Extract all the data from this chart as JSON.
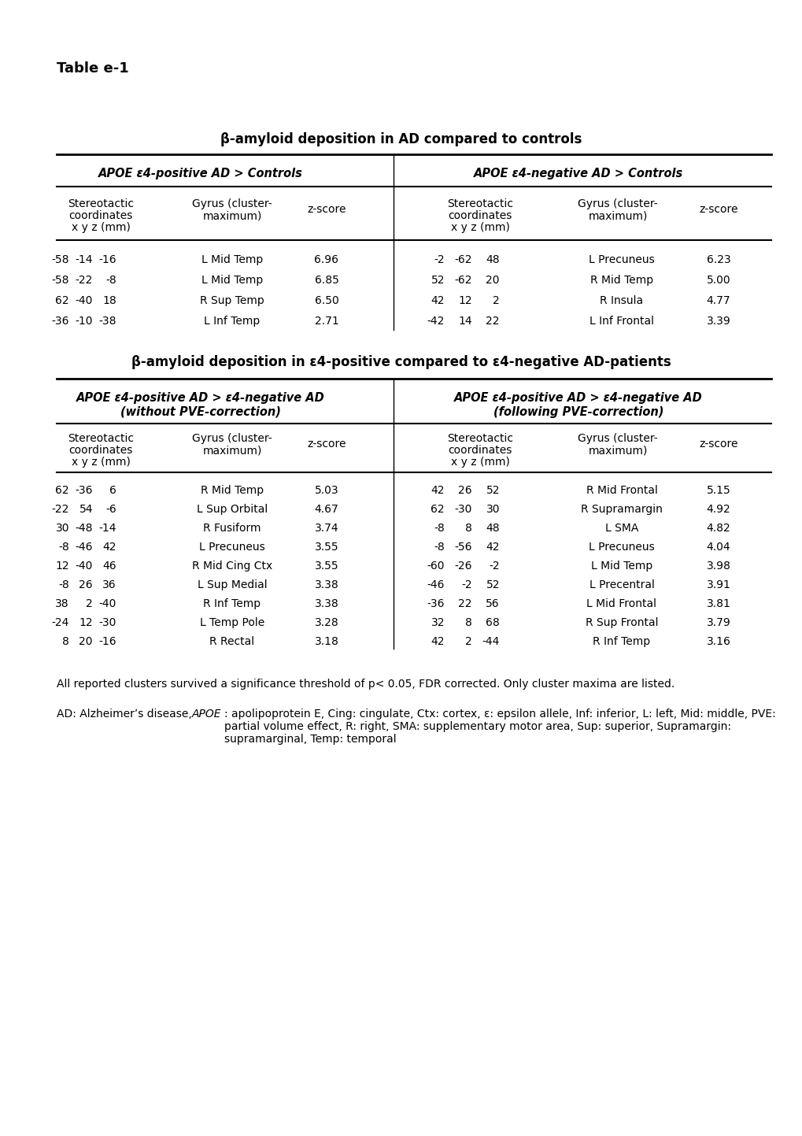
{
  "table_label": "Table e-1",
  "section1_title": "β-amyloid deposition in AD compared to controls",
  "section1_left_header": "APOE ε4-positive AD > Controls",
  "section1_right_header": "APOE ε4-negative AD > Controls",
  "section1_left_data": [
    [
      "-58",
      "-14",
      "-16",
      "L Mid Temp",
      "6.96"
    ],
    [
      "-58",
      "-22",
      "-8",
      "L Mid Temp",
      "6.85"
    ],
    [
      "62",
      "-40",
      "18",
      "R Sup Temp",
      "6.50"
    ],
    [
      "-36",
      "-10",
      "-38",
      "L Inf Temp",
      "2.71"
    ]
  ],
  "section1_right_data": [
    [
      "-2",
      "-62",
      "48",
      "L Precuneus",
      "6.23"
    ],
    [
      "52",
      "-62",
      "20",
      "R Mid Temp",
      "5.00"
    ],
    [
      "42",
      "12",
      "2",
      "R Insula",
      "4.77"
    ],
    [
      "-42",
      "14",
      "22",
      "L Inf Frontal",
      "3.39"
    ]
  ],
  "section2_title": "β-amyloid deposition in ε4-positive compared to ε4-negative AD-patients",
  "section2_left_header_line1": "APOE ε4-positive AD > ε4-negative AD",
  "section2_left_header_line2": "(without PVE-correction)",
  "section2_right_header_line1": "APOE ε4-positive AD > ε4-negative AD",
  "section2_right_header_line2": "(following PVE-correction)",
  "section2_left_data": [
    [
      "62",
      "-36",
      "6",
      "R Mid Temp",
      "5.03"
    ],
    [
      "-22",
      "54",
      "-6",
      "L Sup Orbital",
      "4.67"
    ],
    [
      "30",
      "-48",
      "-14",
      "R Fusiform",
      "3.74"
    ],
    [
      "-8",
      "-46",
      "42",
      "L Precuneus",
      "3.55"
    ],
    [
      "12",
      "-40",
      "46",
      "R Mid Cing Ctx",
      "3.55"
    ],
    [
      "-8",
      "26",
      "36",
      "L Sup Medial",
      "3.38"
    ],
    [
      "38",
      "2",
      "-40",
      "R Inf Temp",
      "3.38"
    ],
    [
      "-24",
      "12",
      "-30",
      "L Temp Pole",
      "3.28"
    ],
    [
      "8",
      "20",
      "-16",
      "R Rectal",
      "3.18"
    ]
  ],
  "section2_right_data": [
    [
      "42",
      "26",
      "52",
      "R Mid Frontal",
      "5.15"
    ],
    [
      "62",
      "-30",
      "30",
      "R Supramargin",
      "4.92"
    ],
    [
      "-8",
      "8",
      "48",
      "L SMA",
      "4.82"
    ],
    [
      "-8",
      "-56",
      "42",
      "L Precuneus",
      "4.04"
    ],
    [
      "-60",
      "-26",
      "-2",
      "L Mid Temp",
      "3.98"
    ],
    [
      "-46",
      "-2",
      "52",
      "L Precentral",
      "3.91"
    ],
    [
      "-36",
      "22",
      "56",
      "L Mid Frontal",
      "3.81"
    ],
    [
      "32",
      "8",
      "68",
      "R Sup Frontal",
      "3.79"
    ],
    [
      "42",
      "2",
      "-44",
      "R Inf Temp",
      "3.16"
    ]
  ],
  "footnote1": "All reported clusters survived a significance threshold of p< 0.05, FDR corrected. Only cluster maxima are listed.",
  "footnote2_part1": "AD: Alzheimer’s disease, ",
  "footnote2_italic": "APOE",
  "footnote2_part2": ": apolipoprotein E, Cing: cingulate, Ctx: cortex, ε: epsilon allele, Inf: inferior, L: left, Mid: middle, PVE: partial volume effect, R: right, SMA: supplementary motor area, Sup: superior, Supramargin: supramarginal, Temp: temporal",
  "bg_color": "#ffffff",
  "text_color": "#000000",
  "line_color": "#000000"
}
